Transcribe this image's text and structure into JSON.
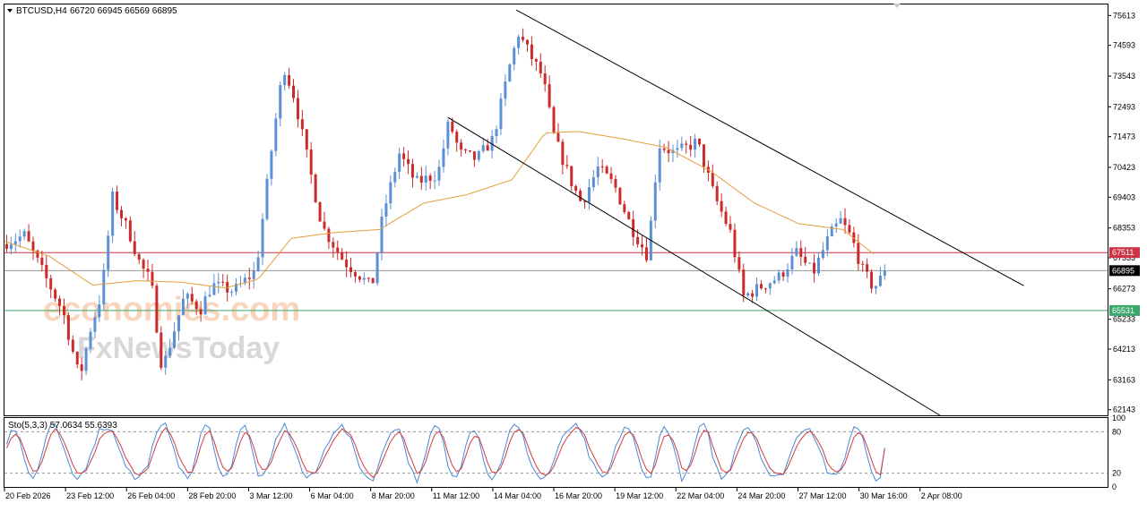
{
  "header": {
    "symbol": "BTCUSD,H4",
    "ohlc": "66720 66945 66569 66895"
  },
  "watermark": {
    "line1": "economies.com",
    "line2": "FxNewsToday"
  },
  "colors": {
    "bull": "#5b8fd8",
    "bear": "#cc2b2b",
    "ma": "#e2a03a",
    "resistance_line": "#cc3344",
    "support_line": "#3aa86b",
    "current_line": "#9a9a9a",
    "channel": "#000000",
    "stoch_main": "#4a88d6",
    "stoch_signal": "#d33b3b"
  },
  "price_axis": {
    "ticks": [
      "75613",
      "74593",
      "73543",
      "72493",
      "71473",
      "70423",
      "69403",
      "68353",
      "67333",
      "66273",
      "65233",
      "64213",
      "63163",
      "62143"
    ],
    "range": [
      61950,
      75990
    ]
  },
  "price_labels": {
    "resistance": "67511",
    "current": "66895",
    "support": "65531"
  },
  "time_axis": {
    "labels": [
      "20 Feb 2026",
      "23 Feb 12:00",
      "26 Feb 04:00",
      "28 Feb 20:00",
      "3 Mar 12:00",
      "6 Mar 04:00",
      "8 Mar 20:00",
      "11 Mar 12:00",
      "14 Mar 04:00",
      "16 Mar 20:00",
      "19 Mar 12:00",
      "22 Mar 04:00",
      "24 Mar 20:00",
      "27 Mar 12:00",
      "30 Mar 16:00",
      "2 Apr 08:00"
    ]
  },
  "stochastic": {
    "label": "Sto(5,3,3) 57.0634 55.6393",
    "ticks": [
      "100",
      "80",
      "20",
      "0"
    ],
    "levels": [
      80,
      20
    ]
  },
  "chart_data": {
    "type": "candlestick",
    "symbol": "BTCUSD",
    "timeframe": "H4",
    "ylim": [
      61950,
      75990
    ],
    "levels": {
      "resistance": 67511,
      "support": 65531,
      "last_price": 66895
    },
    "channel": {
      "upper": [
        {
          "t": 0.464,
          "price": 75800
        },
        {
          "t": 0.924,
          "price": 66380
        }
      ],
      "lower": [
        {
          "t": 0.402,
          "price": 72130
        },
        {
          "t": 0.848,
          "price": 61950
        }
      ]
    },
    "anchors": [
      {
        "t": 0.0,
        "price": 67800
      },
      {
        "t": 0.02,
        "price": 68100
      },
      {
        "t": 0.04,
        "price": 66600
      },
      {
        "t": 0.055,
        "price": 65500
      },
      {
        "t": 0.07,
        "price": 63200
      },
      {
        "t": 0.08,
        "price": 64900
      },
      {
        "t": 0.09,
        "price": 66100
      },
      {
        "t": 0.1,
        "price": 69400
      },
      {
        "t": 0.115,
        "price": 68200
      },
      {
        "t": 0.125,
        "price": 67100
      },
      {
        "t": 0.135,
        "price": 66500
      },
      {
        "t": 0.145,
        "price": 63500
      },
      {
        "t": 0.165,
        "price": 66000
      },
      {
        "t": 0.18,
        "price": 65600
      },
      {
        "t": 0.19,
        "price": 66400
      },
      {
        "t": 0.21,
        "price": 66200
      },
      {
        "t": 0.23,
        "price": 66900
      },
      {
        "t": 0.245,
        "price": 71300
      },
      {
        "t": 0.255,
        "price": 73900
      },
      {
        "t": 0.265,
        "price": 72800
      },
      {
        "t": 0.275,
        "price": 71000
      },
      {
        "t": 0.29,
        "price": 68400
      },
      {
        "t": 0.31,
        "price": 67200
      },
      {
        "t": 0.325,
        "price": 66700
      },
      {
        "t": 0.335,
        "price": 66300
      },
      {
        "t": 0.345,
        "price": 68800
      },
      {
        "t": 0.36,
        "price": 70900
      },
      {
        "t": 0.375,
        "price": 69900
      },
      {
        "t": 0.395,
        "price": 70200
      },
      {
        "t": 0.405,
        "price": 72000
      },
      {
        "t": 0.415,
        "price": 70900
      },
      {
        "t": 0.43,
        "price": 70700
      },
      {
        "t": 0.445,
        "price": 71400
      },
      {
        "t": 0.46,
        "price": 73900
      },
      {
        "t": 0.468,
        "price": 75000
      },
      {
        "t": 0.478,
        "price": 74300
      },
      {
        "t": 0.49,
        "price": 73500
      },
      {
        "t": 0.5,
        "price": 71500
      },
      {
        "t": 0.515,
        "price": 70000
      },
      {
        "t": 0.525,
        "price": 69200
      },
      {
        "t": 0.54,
        "price": 70400
      },
      {
        "t": 0.555,
        "price": 69800
      },
      {
        "t": 0.57,
        "price": 68400
      },
      {
        "t": 0.585,
        "price": 67400
      },
      {
        "t": 0.595,
        "price": 71200
      },
      {
        "t": 0.61,
        "price": 70900
      },
      {
        "t": 0.63,
        "price": 71300
      },
      {
        "t": 0.645,
        "price": 69500
      },
      {
        "t": 0.66,
        "price": 68200
      },
      {
        "t": 0.672,
        "price": 66000
      },
      {
        "t": 0.69,
        "price": 66400
      },
      {
        "t": 0.705,
        "price": 66700
      },
      {
        "t": 0.72,
        "price": 67500
      },
      {
        "t": 0.735,
        "price": 66800
      },
      {
        "t": 0.75,
        "price": 68100
      },
      {
        "t": 0.76,
        "price": 68600
      },
      {
        "t": 0.77,
        "price": 68000
      },
      {
        "t": 0.78,
        "price": 66900
      },
      {
        "t": 0.79,
        "price": 66300
      },
      {
        "t": 0.8,
        "price": 66800
      }
    ],
    "moving_average": [
      {
        "t": 0.0,
        "price": 67900
      },
      {
        "t": 0.04,
        "price": 67400
      },
      {
        "t": 0.08,
        "price": 66400
      },
      {
        "t": 0.12,
        "price": 66550
      },
      {
        "t": 0.16,
        "price": 66500
      },
      {
        "t": 0.2,
        "price": 66300
      },
      {
        "t": 0.23,
        "price": 66600
      },
      {
        "t": 0.26,
        "price": 68000
      },
      {
        "t": 0.3,
        "price": 68200
      },
      {
        "t": 0.34,
        "price": 68300
      },
      {
        "t": 0.38,
        "price": 69200
      },
      {
        "t": 0.42,
        "price": 69500
      },
      {
        "t": 0.46,
        "price": 70000
      },
      {
        "t": 0.49,
        "price": 71600
      },
      {
        "t": 0.52,
        "price": 71650
      },
      {
        "t": 0.56,
        "price": 71400
      },
      {
        "t": 0.6,
        "price": 71100
      },
      {
        "t": 0.64,
        "price": 70300
      },
      {
        "t": 0.68,
        "price": 69200
      },
      {
        "t": 0.72,
        "price": 68500
      },
      {
        "t": 0.76,
        "price": 68300
      },
      {
        "t": 0.79,
        "price": 67400
      }
    ],
    "candle_count": 200,
    "stochastic": {
      "period": "5,3,3",
      "main": 57.0634,
      "signal": 55.6393,
      "overbought": 80,
      "oversold": 20,
      "ylim": [
        0,
        100
      ]
    }
  }
}
